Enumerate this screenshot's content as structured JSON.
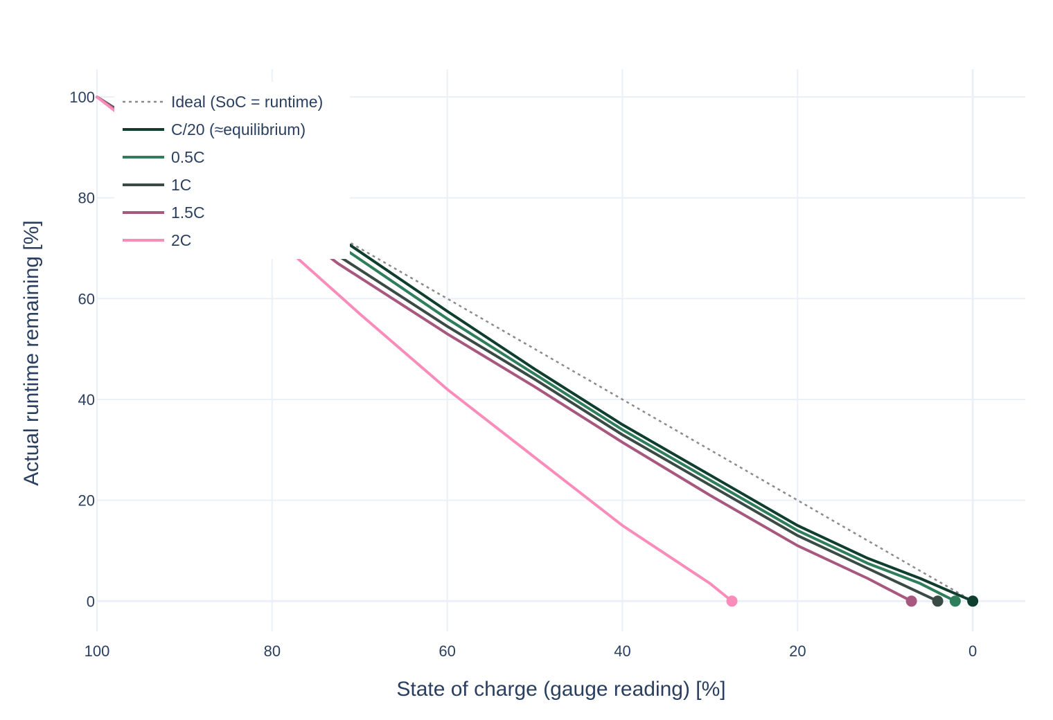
{
  "chart_data": {
    "type": "line",
    "xlabel": "State of charge (gauge reading) [%]",
    "ylabel": "Actual runtime remaining [%]",
    "xlim": [
      100,
      -6
    ],
    "ylim": [
      -6,
      105.5
    ],
    "x_reversed": true,
    "x_ticks": [
      100,
      80,
      60,
      40,
      20,
      0
    ],
    "y_ticks": [
      0,
      20,
      40,
      60,
      80,
      100
    ],
    "grid": true,
    "legend_position": "top-left",
    "series": [
      {
        "name": "Ideal (SoC = runtime)",
        "color": "#8a8a8a",
        "dash": "dot",
        "x": [
          100,
          0
        ],
        "y": [
          100,
          0
        ]
      },
      {
        "name": "C/20 (≈equilibrium)",
        "color": "#0f3d2e",
        "dash": "solid",
        "x": [
          100,
          90,
          80,
          71,
          60,
          50,
          40,
          30,
          20,
          12,
          6,
          2,
          0
        ],
        "y": [
          100,
          89,
          79,
          70.5,
          57.5,
          46,
          35,
          25,
          15,
          8.5,
          4.5,
          1.5,
          0
        ],
        "end_marker": true
      },
      {
        "name": "0.5C",
        "color": "#2e7d5b",
        "dash": "solid",
        "x": [
          100,
          90,
          80,
          71,
          60,
          50,
          40,
          30,
          20,
          12,
          6,
          2
        ],
        "y": [
          100,
          89,
          79,
          69,
          56,
          45,
          34,
          24,
          14,
          7.5,
          3.5,
          0
        ],
        "end_marker": true
      },
      {
        "name": "1C",
        "color": "#3a4a45",
        "dash": "solid",
        "x": [
          100,
          90,
          80,
          72,
          60,
          50,
          40,
          30,
          20,
          12,
          4
        ],
        "y": [
          100,
          88.5,
          78,
          68,
          54.5,
          44,
          33,
          23,
          13,
          6.5,
          0
        ],
        "end_marker": true
      },
      {
        "name": "1.5C",
        "color": "#a8577f",
        "dash": "solid",
        "x": [
          100,
          90,
          80,
          72.5,
          60,
          50,
          40,
          30,
          20,
          12,
          7
        ],
        "y": [
          100,
          88,
          77,
          67,
          53,
          42.5,
          31.5,
          21,
          11,
          4.5,
          0
        ],
        "end_marker": true
      },
      {
        "name": "2C",
        "color": "#f98cba",
        "dash": "solid",
        "x": [
          100,
          90,
          80,
          70,
          60,
          50,
          40,
          30,
          27.5
        ],
        "y": [
          100,
          86.5,
          72.5,
          57,
          42,
          28.5,
          15,
          3.5,
          0
        ],
        "end_marker": true
      }
    ]
  }
}
